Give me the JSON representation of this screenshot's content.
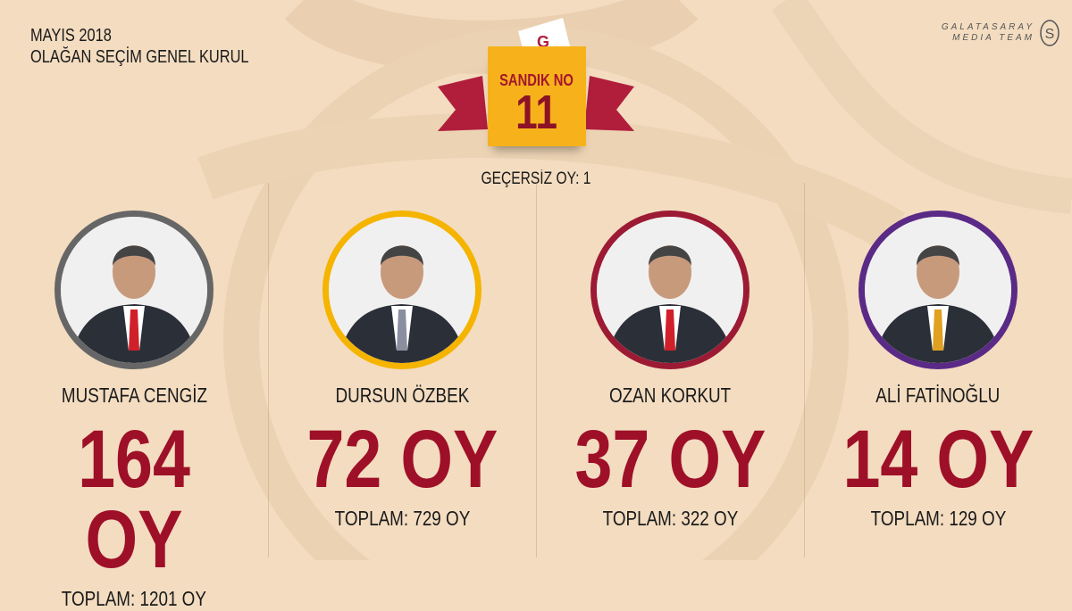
{
  "header": {
    "line1": "MAYIS 2018",
    "line2": "OLAĞAN SEÇİM GENEL KURUL"
  },
  "logo": {
    "line1": "GALATASARAY",
    "line2": "MEDIA TEAM"
  },
  "ballot_box": {
    "label": "SANDIK NO",
    "number": "11"
  },
  "invalid_votes": "GEÇERSİZ OY: 1",
  "colors": {
    "background": "#f3dcc0",
    "accent": "#9e1028",
    "box": "#f7b21b",
    "ribbon": "#b01e3c"
  },
  "candidates": [
    {
      "name": "MUSTAFA CENGİZ",
      "votes": "164 OY",
      "total": "TOPLAM: 1201 OY",
      "ring": "#666666",
      "tie": "#d0202a"
    },
    {
      "name": "DURSUN ÖZBEK",
      "votes": "72 OY",
      "total": "TOPLAM: 729 OY",
      "ring": "#f5b400",
      "tie": "#8a8fa0"
    },
    {
      "name": "OZAN KORKUT",
      "votes": "37 OY",
      "total": "TOPLAM: 322 OY",
      "ring": "#9c1a33",
      "tie": "#d0202a"
    },
    {
      "name": "ALİ FATİNOĞLU",
      "votes": "14 OY",
      "total": "TOPLAM: 129 OY",
      "ring": "#5a2a86",
      "tie": "#e0a020"
    }
  ]
}
